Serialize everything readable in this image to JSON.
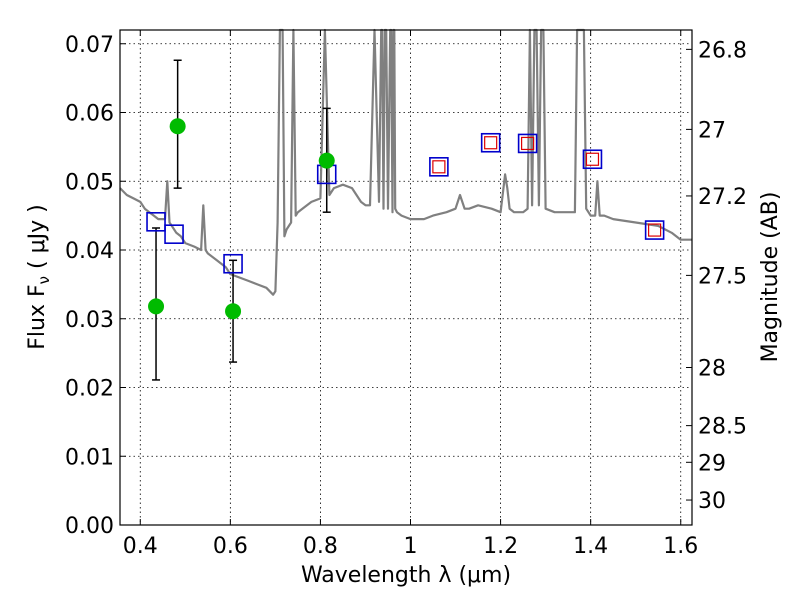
{
  "chart_data": {
    "type": "scatter",
    "xlabel": "Wavelength  λ (μm)",
    "ylabel": "Flux  F",
    "ylabel_sub": "ν",
    "ylabel_unit": " ( μJy )",
    "y2label": "Magnitude (AB)",
    "xlim": [
      0.355,
      1.625
    ],
    "ylim": [
      0.0,
      0.072
    ],
    "grid": true,
    "x_ticks": [
      0.4,
      0.6,
      0.8,
      1.0,
      1.2,
      1.4,
      1.6
    ],
    "x_tick_labels": [
      "0.4",
      "0.6",
      "0.8",
      "1",
      "1.2",
      "1.4",
      "1.6"
    ],
    "y_ticks": [
      0.0,
      0.01,
      0.02,
      0.03,
      0.04,
      0.05,
      0.06,
      0.07
    ],
    "y_tick_labels": [
      "0.00",
      "0.01",
      "0.02",
      "0.03",
      "0.04",
      "0.05",
      "0.06",
      "0.07"
    ],
    "mag_ticks": [
      26.8,
      27,
      27.2,
      27.5,
      28,
      28.5,
      29,
      30
    ],
    "mag_tick_labels": [
      "26.8",
      "27",
      "27.2",
      "27.5",
      "28",
      "28.5",
      "29",
      "30"
    ],
    "series": [
      {
        "name": "model spectrum",
        "kind": "line",
        "color": "#808080",
        "x": [
          0.355,
          0.37,
          0.385,
          0.4,
          0.41,
          0.42,
          0.43,
          0.44,
          0.45,
          0.455,
          0.46,
          0.465,
          0.47,
          0.48,
          0.49,
          0.5,
          0.52,
          0.535,
          0.54,
          0.545,
          0.55,
          0.57,
          0.59,
          0.6,
          0.62,
          0.64,
          0.66,
          0.68,
          0.695,
          0.7,
          0.705,
          0.71,
          0.713,
          0.716,
          0.72,
          0.725,
          0.73,
          0.735,
          0.74,
          0.745,
          0.75,
          0.76,
          0.78,
          0.8,
          0.81,
          0.82,
          0.83,
          0.85,
          0.87,
          0.88,
          0.89,
          0.9,
          0.91,
          0.92,
          0.93,
          0.935,
          0.937,
          0.94,
          0.943,
          0.946,
          0.95,
          0.955,
          0.957,
          0.96,
          0.962,
          0.964,
          0.966,
          0.97,
          0.98,
          1.0,
          1.03,
          1.05,
          1.08,
          1.1,
          1.11,
          1.12,
          1.13,
          1.15,
          1.18,
          1.2,
          1.21,
          1.215,
          1.22,
          1.23,
          1.25,
          1.26,
          1.265,
          1.27,
          1.275,
          1.28,
          1.285,
          1.29,
          1.295,
          1.3,
          1.32,
          1.35,
          1.365,
          1.37,
          1.375,
          1.38,
          1.385,
          1.39,
          1.4,
          1.41,
          1.415,
          1.42,
          1.43,
          1.45,
          1.5,
          1.55,
          1.58,
          1.6,
          1.625
        ],
        "y": [
          0.049,
          0.048,
          0.0475,
          0.047,
          0.046,
          0.0455,
          0.045,
          0.0445,
          0.0445,
          0.0445,
          0.05,
          0.044,
          0.0435,
          0.0425,
          0.042,
          0.041,
          0.0405,
          0.04,
          0.0465,
          0.04,
          0.0395,
          0.0385,
          0.0375,
          0.0365,
          0.036,
          0.0355,
          0.035,
          0.0345,
          0.0335,
          0.034,
          0.044,
          0.072,
          0.072,
          0.072,
          0.042,
          0.043,
          0.0435,
          0.044,
          0.072,
          0.045,
          0.0455,
          0.046,
          0.047,
          0.0475,
          0.072,
          0.048,
          0.049,
          0.0495,
          0.049,
          0.048,
          0.047,
          0.0465,
          0.0465,
          0.072,
          0.047,
          0.072,
          0.072,
          0.046,
          0.072,
          0.072,
          0.046,
          0.072,
          0.072,
          0.0455,
          0.072,
          0.072,
          0.046,
          0.0455,
          0.045,
          0.0445,
          0.0445,
          0.045,
          0.0455,
          0.046,
          0.048,
          0.046,
          0.046,
          0.0465,
          0.046,
          0.0455,
          0.051,
          0.049,
          0.046,
          0.0455,
          0.0455,
          0.046,
          0.072,
          0.0465,
          0.072,
          0.072,
          0.0465,
          0.072,
          0.072,
          0.046,
          0.0455,
          0.0455,
          0.0455,
          0.072,
          0.072,
          0.072,
          0.072,
          0.046,
          0.045,
          0.045,
          0.05,
          0.045,
          0.045,
          0.0445,
          0.044,
          0.0435,
          0.0425,
          0.0415,
          0.0415
        ]
      },
      {
        "name": "observed (green)",
        "kind": "points",
        "color": "#00bb00",
        "x": [
          0.435,
          0.483,
          0.606,
          0.814
        ],
        "y": [
          0.0318,
          0.058,
          0.0311,
          0.053
        ],
        "yerr_low": [
          0.0211,
          0.049,
          0.0237,
          0.0455
        ],
        "yerr_high": [
          0.0432,
          0.0676,
          0.0385,
          0.0606
        ]
      },
      {
        "name": "model photometry (blue squares)",
        "kind": "open-squares",
        "color": "#0000cc",
        "x": [
          0.435,
          0.475,
          0.606,
          0.814,
          1.063,
          1.178,
          1.26,
          1.404,
          1.542
        ],
        "y": [
          0.0441,
          0.0423,
          0.038,
          0.051,
          0.0521,
          0.0556,
          0.0555,
          0.0532,
          0.0429
        ]
      },
      {
        "name": "observed photometry (red squares)",
        "kind": "open-squares",
        "color": "#dd0000",
        "x": [
          1.063,
          1.178,
          1.26,
          1.404,
          1.542
        ],
        "y": [
          0.0521,
          0.0556,
          0.0555,
          0.0532,
          0.0429
        ]
      }
    ]
  }
}
